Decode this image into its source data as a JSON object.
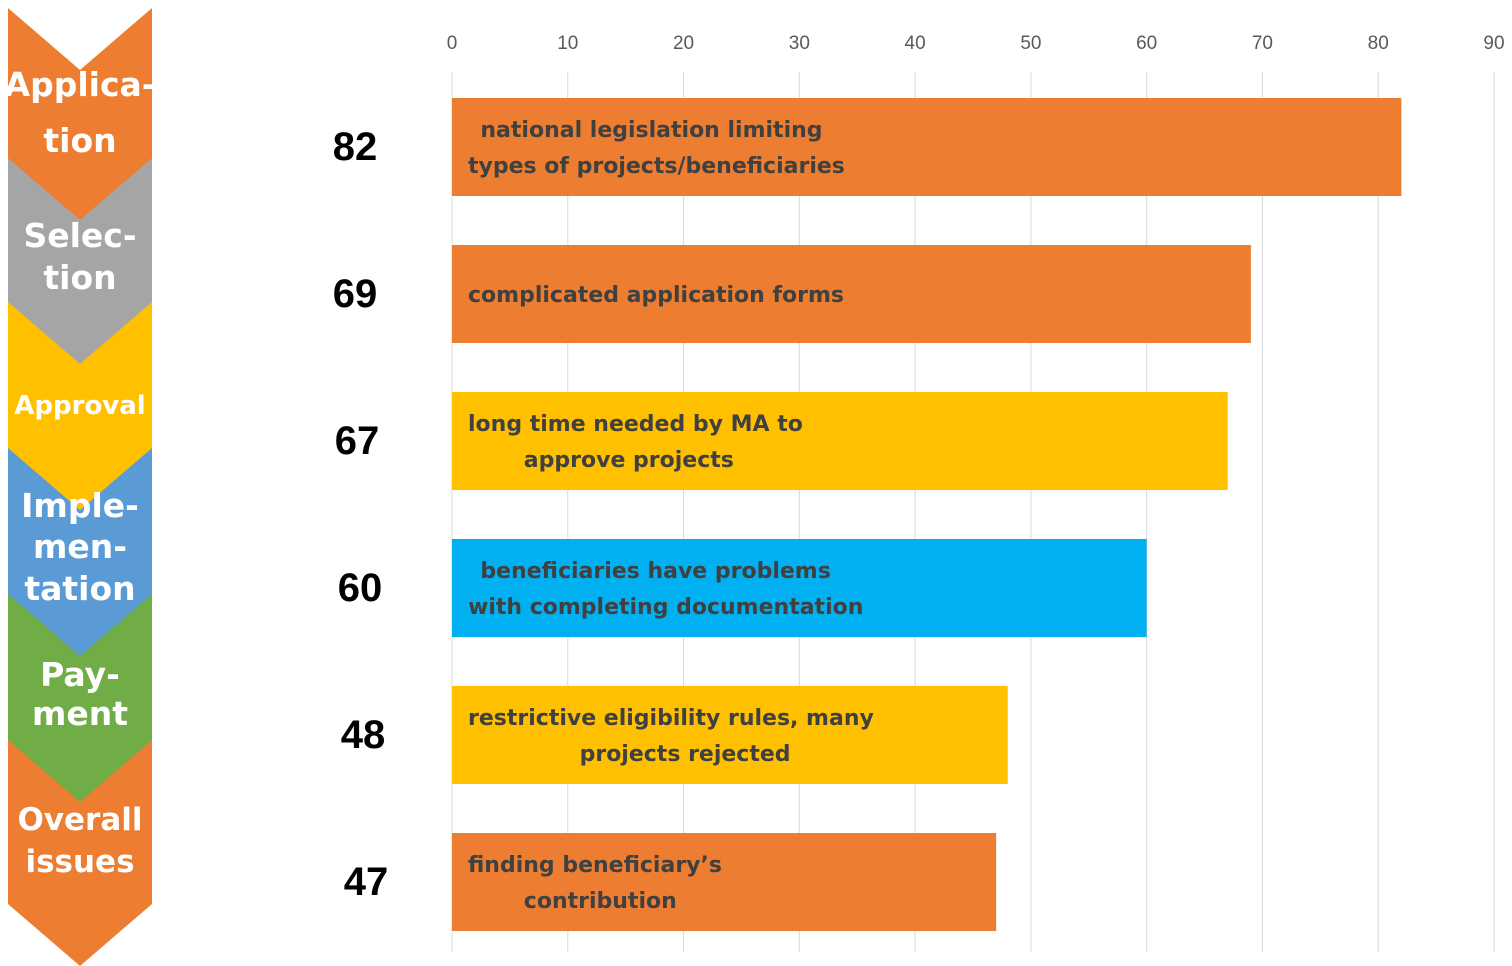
{
  "colors": {
    "orange": "#ED7D31",
    "gray": "#A5A5A5",
    "yellow": "#FFC000",
    "blue": "#5B9BD5",
    "cyan": "#00B0F0",
    "green": "#70AD47",
    "grid": "#d9d9d9",
    "bar_text": "#404040"
  },
  "stages": [
    {
      "lines": [
        "Applica-",
        "tion"
      ],
      "color": "#ED7D31"
    },
    {
      "lines": [
        "Selec-",
        "tion"
      ],
      "color": "#A5A5A5"
    },
    {
      "lines": [
        "Approval"
      ],
      "color": "#FFC000"
    },
    {
      "lines": [
        "Imple-",
        "men-",
        "tation"
      ],
      "color": "#5B9BD5"
    },
    {
      "lines": [
        "Pay-",
        "ment"
      ],
      "color": "#70AD47"
    },
    {
      "lines": [
        "Overall",
        "issues"
      ],
      "color": "#ED7D31"
    }
  ],
  "chart_data": {
    "type": "bar",
    "orientation": "horizontal",
    "xlim": [
      0,
      90
    ],
    "x_ticks": [
      0,
      10,
      20,
      30,
      40,
      50,
      60,
      70,
      80,
      90
    ],
    "x_axis_position": "top",
    "grid": true,
    "bars": [
      {
        "value": 82,
        "label": [
          "national legislation limiting",
          "types of projects/beneficiaries"
        ],
        "color": "#ED7D31"
      },
      {
        "value": 69,
        "label": [
          "complicated application forms"
        ],
        "color": "#ED7D31"
      },
      {
        "value": 67,
        "label": [
          "long time needed by MA to",
          "approve projects"
        ],
        "color": "#FFC000"
      },
      {
        "value": 60,
        "label": [
          "beneficiaries have problems",
          "with completing documentation"
        ],
        "color": "#00B0F0"
      },
      {
        "value": 48,
        "label": [
          "restrictive eligibility rules, many",
          "projects rejected"
        ],
        "color": "#FFC000"
      },
      {
        "value": 47,
        "label": [
          "finding beneficiary’s",
          "contribution"
        ],
        "color": "#ED7D31"
      }
    ]
  }
}
